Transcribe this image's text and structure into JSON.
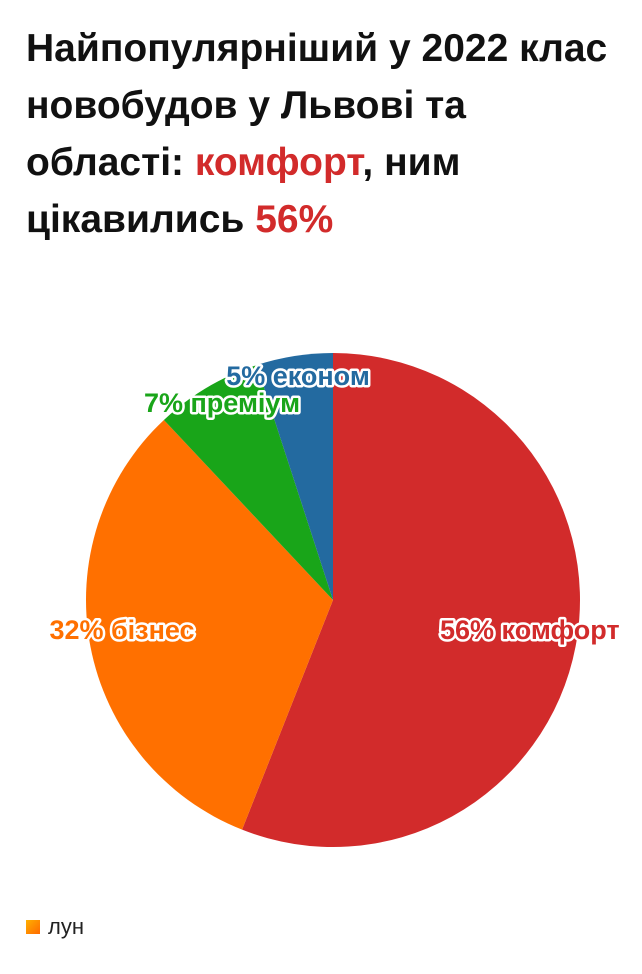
{
  "chart_data": {
    "type": "pie",
    "title": [
      "Найпопулярніший у 2022 клас новобудов у Львові та області: ",
      "комфорт",
      ", ним цікавились ",
      "56%"
    ],
    "values": [
      56,
      32,
      7,
      5
    ],
    "value_labels": [
      "56% комфорт",
      "32% бізнес",
      "7% преміум",
      "5% економ"
    ],
    "colors": [
      "#d22b2b",
      "#ff7000",
      "#19a519",
      "#236aa0"
    ]
  },
  "logo": "лун"
}
